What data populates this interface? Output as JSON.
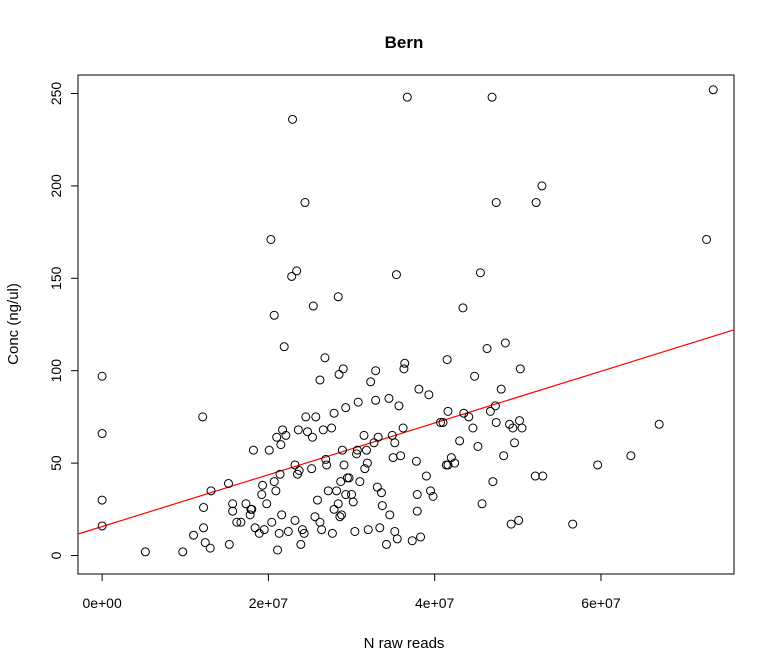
{
  "chart_data": {
    "type": "scatter",
    "title": "Bern",
    "xlabel": "N raw reads",
    "ylabel": "Conc (ng/ul)",
    "xlim": [
      -2900000,
      76000000
    ],
    "ylim": [
      -10,
      260
    ],
    "x_ticks": [
      0,
      20000000,
      40000000,
      60000000
    ],
    "x_tick_labels": [
      "0e+00",
      "2e+07",
      "4e+07",
      "6e+07"
    ],
    "y_ticks": [
      0,
      50,
      100,
      150,
      200,
      250
    ],
    "y_tick_labels": [
      "0",
      "50",
      "100",
      "150",
      "200",
      "250"
    ],
    "grid": false,
    "colors": {
      "points": "#000000",
      "fit_line": "#ff0000"
    },
    "fit_line": {
      "intercept": 15.7,
      "slope": 1.4e-06
    },
    "points": [
      [
        0,
        97
      ],
      [
        0,
        66
      ],
      [
        0,
        30
      ],
      [
        0,
        16
      ],
      [
        5200000.0,
        2
      ],
      [
        9700000.0,
        2
      ],
      [
        12100000.0,
        75
      ],
      [
        12200000.0,
        26
      ],
      [
        12200000.0,
        15
      ],
      [
        12400000.0,
        7
      ],
      [
        11000000.0,
        11
      ],
      [
        13000000.0,
        4
      ],
      [
        13100000.0,
        35
      ],
      [
        15200000.0,
        39
      ],
      [
        15300000.0,
        6
      ],
      [
        15700000.0,
        24
      ],
      [
        15700000.0,
        28
      ],
      [
        16200000.0,
        18
      ],
      [
        16700000.0,
        18
      ],
      [
        17300000.0,
        28
      ],
      [
        17800000.0,
        22
      ],
      [
        17900000.0,
        25
      ],
      [
        18000000.0,
        25
      ],
      [
        18200000.0,
        57
      ],
      [
        18400000.0,
        15
      ],
      [
        18900000.0,
        12
      ],
      [
        19200000.0,
        33
      ],
      [
        19300000.0,
        38
      ],
      [
        19500000.0,
        14
      ],
      [
        19800000.0,
        28
      ],
      [
        20100000.0,
        57
      ],
      [
        20300000.0,
        171
      ],
      [
        20400000.0,
        18
      ],
      [
        20700000.0,
        130
      ],
      [
        20700000.0,
        40
      ],
      [
        20900000.0,
        35
      ],
      [
        21000000.0,
        64
      ],
      [
        21100000.0,
        3
      ],
      [
        21300000.0,
        12
      ],
      [
        21400000.0,
        44
      ],
      [
        21500000.0,
        60
      ],
      [
        21600000.0,
        22
      ],
      [
        21700000.0,
        68
      ],
      [
        21900000.0,
        113
      ],
      [
        22100000.0,
        65
      ],
      [
        22400000.0,
        13
      ],
      [
        22800000.0,
        151
      ],
      [
        22900000.0,
        236
      ],
      [
        23200000.0,
        49
      ],
      [
        23200000.0,
        19
      ],
      [
        23400000.0,
        154
      ],
      [
        23500000.0,
        44
      ],
      [
        23600000.0,
        68
      ],
      [
        23700000.0,
        46
      ],
      [
        23900000.0,
        6
      ],
      [
        24100000.0,
        14
      ],
      [
        24300000.0,
        12
      ],
      [
        24400000.0,
        191
      ],
      [
        24500000.0,
        75
      ],
      [
        24700000.0,
        67
      ],
      [
        25200000.0,
        47
      ],
      [
        25300000.0,
        64
      ],
      [
        25400000.0,
        135
      ],
      [
        25600000.0,
        21
      ],
      [
        25700000.0,
        75
      ],
      [
        25900000.0,
        30
      ],
      [
        26200000.0,
        95
      ],
      [
        26200000.0,
        18
      ],
      [
        26400000.0,
        14
      ],
      [
        26600000.0,
        68
      ],
      [
        26800000.0,
        107
      ],
      [
        26900000.0,
        52
      ],
      [
        27000000.0,
        49
      ],
      [
        27200000.0,
        35
      ],
      [
        27600000.0,
        69
      ],
      [
        27700000.0,
        12
      ],
      [
        27900000.0,
        25
      ],
      [
        27900000.0,
        77
      ],
      [
        28200000.0,
        35
      ],
      [
        28400000.0,
        140
      ],
      [
        28400000.0,
        28
      ],
      [
        28500000.0,
        98
      ],
      [
        28600000.0,
        21
      ],
      [
        28700000.0,
        40
      ],
      [
        28800000.0,
        22
      ],
      [
        28900000.0,
        57
      ],
      [
        29000000.0,
        101
      ],
      [
        29100000.0,
        49
      ],
      [
        29300000.0,
        80
      ],
      [
        29300000.0,
        33
      ],
      [
        29500000.0,
        42
      ],
      [
        29700000.0,
        42
      ],
      [
        30000000.0,
        33
      ],
      [
        30200000.0,
        29
      ],
      [
        30400000.0,
        13
      ],
      [
        30600000.0,
        55
      ],
      [
        30700000.0,
        57
      ],
      [
        30800000.0,
        83
      ],
      [
        31000000.0,
        40
      ],
      [
        31500000.0,
        65
      ],
      [
        31600000.0,
        47
      ],
      [
        31800000.0,
        57
      ],
      [
        31900000.0,
        50
      ],
      [
        32000000.0,
        14
      ],
      [
        32300000.0,
        94
      ],
      [
        32700000.0,
        61
      ],
      [
        32900000.0,
        100
      ],
      [
        32900000.0,
        84
      ],
      [
        33100000.0,
        37
      ],
      [
        33200000.0,
        64
      ],
      [
        33400000.0,
        15
      ],
      [
        33600000.0,
        34
      ],
      [
        33700000.0,
        27
      ],
      [
        34200000.0,
        6
      ],
      [
        34500000.0,
        85
      ],
      [
        34600000.0,
        22
      ],
      [
        34900000.0,
        65
      ],
      [
        35000000.0,
        53
      ],
      [
        35200000.0,
        61
      ],
      [
        35200000.0,
        13
      ],
      [
        35400000.0,
        152
      ],
      [
        35500000.0,
        9
      ],
      [
        35700000.0,
        81
      ],
      [
        35900000.0,
        54
      ],
      [
        36200000.0,
        69
      ],
      [
        36300000.0,
        101
      ],
      [
        36400000.0,
        104
      ],
      [
        36700000.0,
        248
      ],
      [
        37300000.0,
        8
      ],
      [
        37800000.0,
        51
      ],
      [
        37900000.0,
        24
      ],
      [
        37900000.0,
        33
      ],
      [
        38100000.0,
        90
      ],
      [
        38300000.0,
        10
      ],
      [
        39000000.0,
        43
      ],
      [
        39300000.0,
        87
      ],
      [
        39500000.0,
        35
      ],
      [
        39800000.0,
        32
      ],
      [
        40700000.0,
        72
      ],
      [
        41000000.0,
        72
      ],
      [
        41400000.0,
        49
      ],
      [
        41500000.0,
        106
      ],
      [
        41600000.0,
        49
      ],
      [
        41600000.0,
        78
      ],
      [
        42000000.0,
        53
      ],
      [
        42400000.0,
        50
      ],
      [
        43000000.0,
        62
      ],
      [
        43400000.0,
        134
      ],
      [
        43500000.0,
        77
      ],
      [
        44100000.0,
        75
      ],
      [
        44600000.0,
        69
      ],
      [
        44800000.0,
        97
      ],
      [
        45200000.0,
        59
      ],
      [
        45500000.0,
        153
      ],
      [
        45700000.0,
        28
      ],
      [
        46300000.0,
        112
      ],
      [
        46700000.0,
        78
      ],
      [
        46900000.0,
        248
      ],
      [
        47000000.0,
        40
      ],
      [
        47300000.0,
        81
      ],
      [
        47400000.0,
        191
      ],
      [
        47400000.0,
        72
      ],
      [
        48000000.0,
        90
      ],
      [
        48300000.0,
        54
      ],
      [
        48500000.0,
        115
      ],
      [
        49000000.0,
        71
      ],
      [
        49200000.0,
        17
      ],
      [
        49400000.0,
        69
      ],
      [
        49600000.0,
        61
      ],
      [
        50100000.0,
        19
      ],
      [
        50200000.0,
        73
      ],
      [
        50300000.0,
        101
      ],
      [
        50500000.0,
        69
      ],
      [
        52100000.0,
        43
      ],
      [
        52200000.0,
        191
      ],
      [
        52900000.0,
        200
      ],
      [
        53000000.0,
        43
      ],
      [
        56600000.0,
        17
      ],
      [
        59600000.0,
        49
      ],
      [
        63600000.0,
        54
      ],
      [
        67000000.0,
        71
      ],
      [
        72700000.0,
        171
      ],
      [
        73500000.0,
        252
      ]
    ]
  }
}
